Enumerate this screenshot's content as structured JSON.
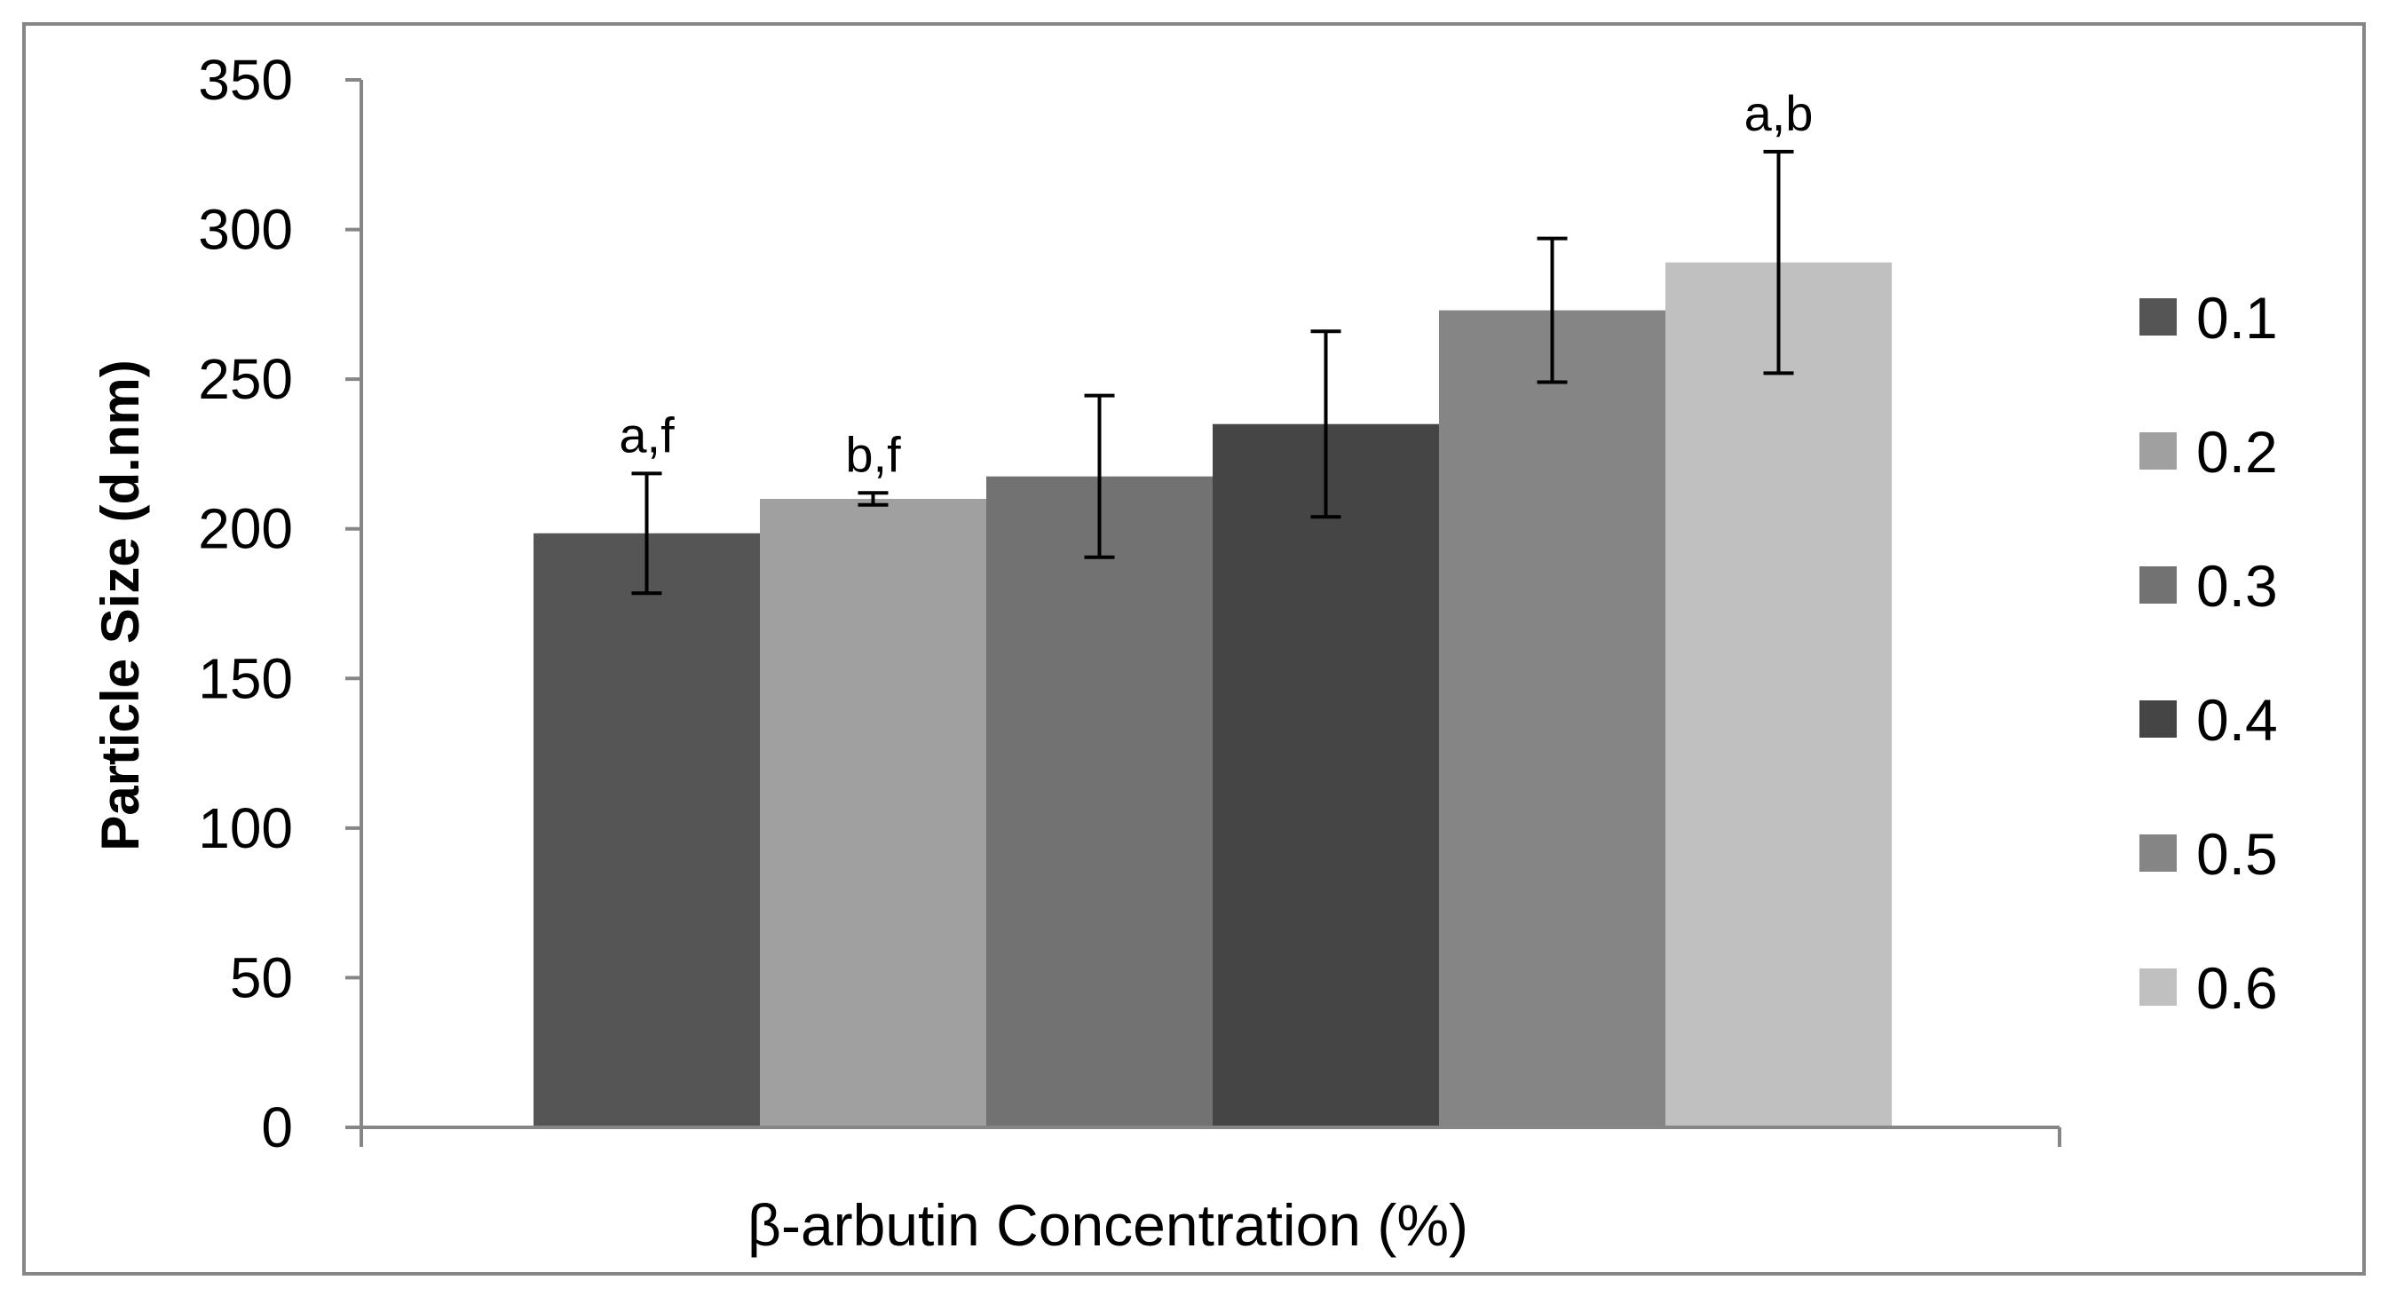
{
  "chart_data": {
    "type": "bar",
    "title": "",
    "xlabel": "β-arbutin Concentration (%)",
    "ylabel": "Particle Size (d.nm)",
    "ylim": [
      0,
      350
    ],
    "yticks": [
      0,
      50,
      100,
      150,
      200,
      250,
      300,
      350
    ],
    "grid": false,
    "legend_position": "right",
    "categories": [
      ""
    ],
    "series": [
      {
        "name": "0.1",
        "values": [
          198.5
        ],
        "error": [
          20
        ],
        "annotation": "a,f",
        "color": "#555555"
      },
      {
        "name": "0.2",
        "values": [
          210
        ],
        "error": [
          2
        ],
        "annotation": "b,f",
        "color": "#a0a0a0"
      },
      {
        "name": "0.3",
        "values": [
          217.5
        ],
        "error": [
          27
        ],
        "annotation": "",
        "color": "#727272"
      },
      {
        "name": "0.4",
        "values": [
          235
        ],
        "error": [
          31
        ],
        "annotation": "",
        "color": "#454545"
      },
      {
        "name": "0.5",
        "values": [
          273
        ],
        "error": [
          24
        ],
        "annotation": "",
        "color": "#858585"
      },
      {
        "name": "0.6",
        "values": [
          289
        ],
        "error": [
          37
        ],
        "annotation": "a,b",
        "color": "#c0c0c0"
      }
    ]
  }
}
